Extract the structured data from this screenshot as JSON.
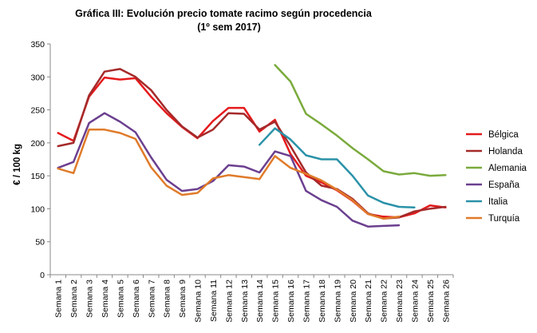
{
  "chart_data": {
    "type": "line",
    "title_line1": "Gráfica III: Evolución precio tomate racimo según procedencia",
    "title_line2": "(1º sem 2017)",
    "xlabel": "",
    "ylabel": "€ / 100 kg",
    "ylim": [
      0,
      350
    ],
    "yticks": [
      0,
      50,
      100,
      150,
      200,
      250,
      300,
      350
    ],
    "grid": false,
    "legend_position": "right",
    "categories": [
      "Semana 1",
      "Semana 2",
      "Semana 3",
      "Semana 4",
      "Semana 5",
      "Semana 6",
      "Semana 7",
      "Semana 8",
      "Semana 9",
      "Semana 10",
      "Semana 11",
      "Semana 12",
      "Semana 13",
      "Semana 14",
      "Semana 15",
      "Semana 16",
      "Semana 17",
      "Semana 18",
      "Semana 19",
      "Semana 20",
      "Semana 21",
      "Semana 22",
      "Semana 23",
      "Semana 24",
      "Semana 25",
      "Semana 26"
    ],
    "series": [
      {
        "name": "Bélgica",
        "color": "#e41a1c",
        "values": [
          215,
          203,
          270,
          299,
          296,
          298,
          270,
          245,
          224,
          207,
          233,
          253,
          253,
          217,
          235,
          183,
          150,
          140,
          128,
          112,
          92,
          88,
          87,
          93,
          105,
          102
        ]
      },
      {
        "name": "Holanda",
        "color": "#a52a2a",
        "values": [
          195,
          200,
          272,
          308,
          312,
          300,
          280,
          250,
          225,
          208,
          220,
          245,
          244,
          220,
          232,
          195,
          155,
          135,
          130,
          115,
          93,
          85,
          87,
          96,
          100,
          103
        ]
      },
      {
        "name": "Alemania",
        "color": "#7aaa3c",
        "values": [
          null,
          null,
          null,
          null,
          null,
          null,
          null,
          null,
          null,
          null,
          null,
          null,
          null,
          null,
          318,
          293,
          244,
          228,
          211,
          192,
          175,
          157,
          152,
          154,
          150,
          151
        ]
      },
      {
        "name": "España",
        "color": "#6b3f8f",
        "values": [
          162,
          171,
          230,
          245,
          232,
          216,
          178,
          144,
          127,
          130,
          142,
          166,
          164,
          155,
          187,
          180,
          127,
          113,
          103,
          82,
          73,
          74,
          75,
          null,
          null,
          null
        ]
      },
      {
        "name": "Italia",
        "color": "#2a92a8",
        "values": [
          null,
          null,
          null,
          null,
          null,
          null,
          null,
          null,
          null,
          null,
          null,
          null,
          null,
          197,
          222,
          205,
          181,
          175,
          175,
          150,
          120,
          109,
          103,
          102,
          null,
          null
        ]
      },
      {
        "name": "Turquía",
        "color": "#e07b2a",
        "values": [
          161,
          154,
          220,
          220,
          215,
          206,
          163,
          135,
          121,
          124,
          146,
          151,
          148,
          145,
          180,
          162,
          153,
          143,
          129,
          113,
          92,
          85,
          88,
          null,
          null,
          null
        ]
      }
    ]
  }
}
